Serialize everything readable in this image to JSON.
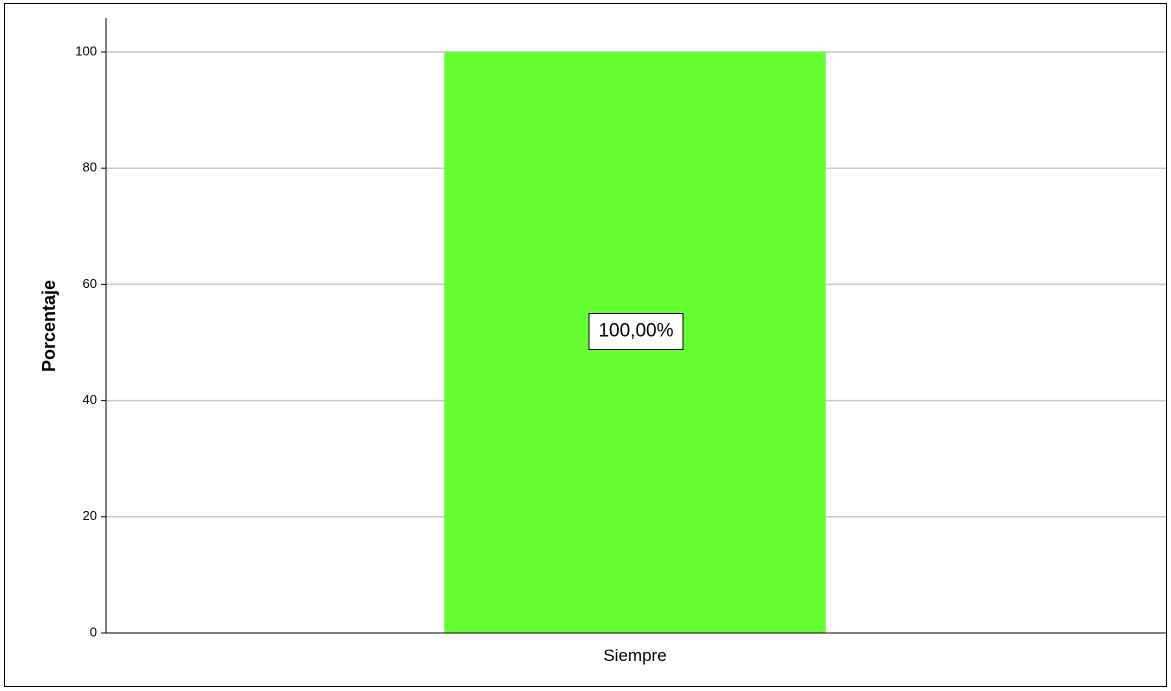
{
  "chart_data": {
    "type": "bar",
    "categories": [
      "Siempre"
    ],
    "values": [
      100
    ],
    "data_labels": [
      "100,00%"
    ],
    "title": "",
    "xlabel": "",
    "ylabel": "Porcentaje",
    "ylim": [
      0,
      100
    ],
    "yticks": [
      0,
      20,
      40,
      60,
      80,
      100
    ],
    "grid": true,
    "legend": "none",
    "colors": {
      "bar": "#66ff33",
      "gridline": "#c8c8c8",
      "axis": "#000000"
    }
  }
}
